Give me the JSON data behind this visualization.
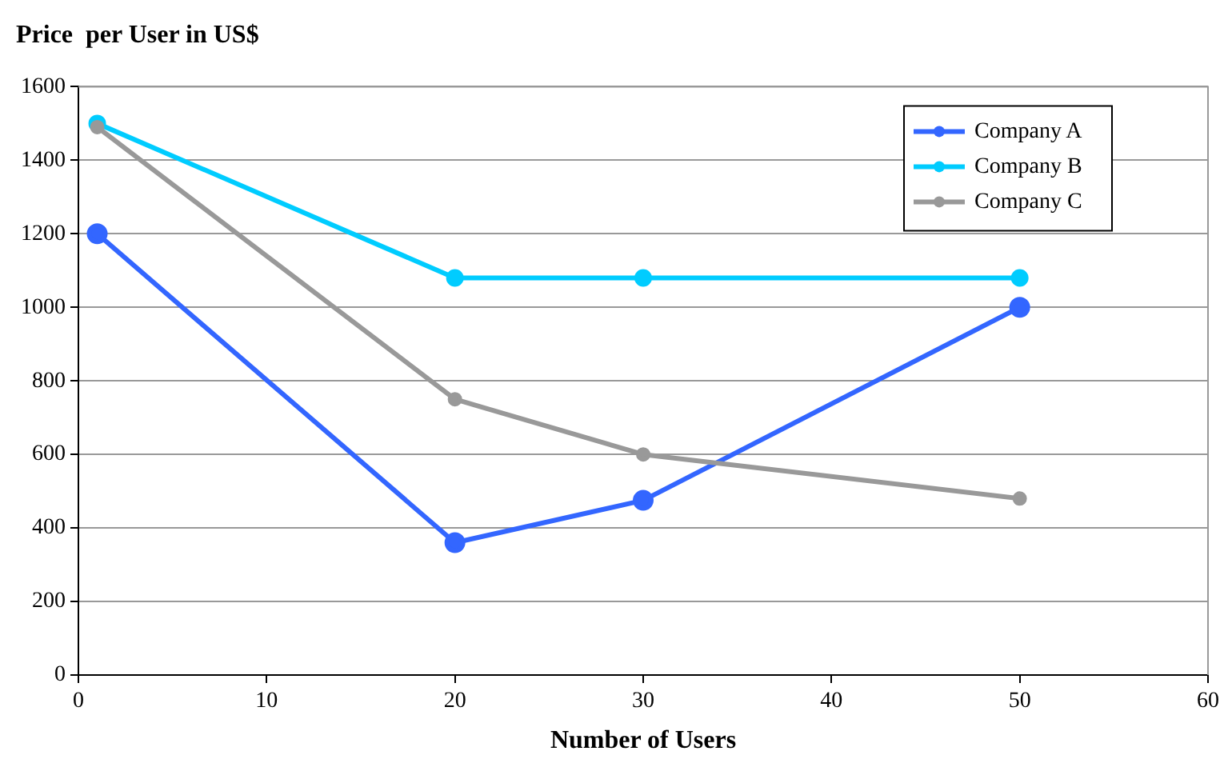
{
  "chart_data": {
    "type": "line",
    "ylabel": "Price  per User in US$",
    "xlabel": "Number of Users",
    "x": [
      1,
      20,
      30,
      50
    ],
    "series": [
      {
        "name": "Company A",
        "color": "#3366ff",
        "values": [
          1200,
          360,
          475,
          1000
        ]
      },
      {
        "name": "Company B",
        "color": "#00ccff",
        "values": [
          1500,
          1080,
          1080,
          1080
        ]
      },
      {
        "name": "Company C",
        "color": "#999999",
        "values": [
          1490,
          750,
          600,
          480
        ]
      }
    ],
    "xlim": [
      0,
      60
    ],
    "xticks": [
      0,
      10,
      20,
      30,
      40,
      50,
      60
    ],
    "ylim": [
      0,
      1600
    ],
    "yticks": [
      0,
      200,
      400,
      600,
      800,
      1000,
      1200,
      1400,
      1600
    ],
    "grid": "y",
    "legend": "top right",
    "marker": "circle",
    "line_style": "solid"
  }
}
